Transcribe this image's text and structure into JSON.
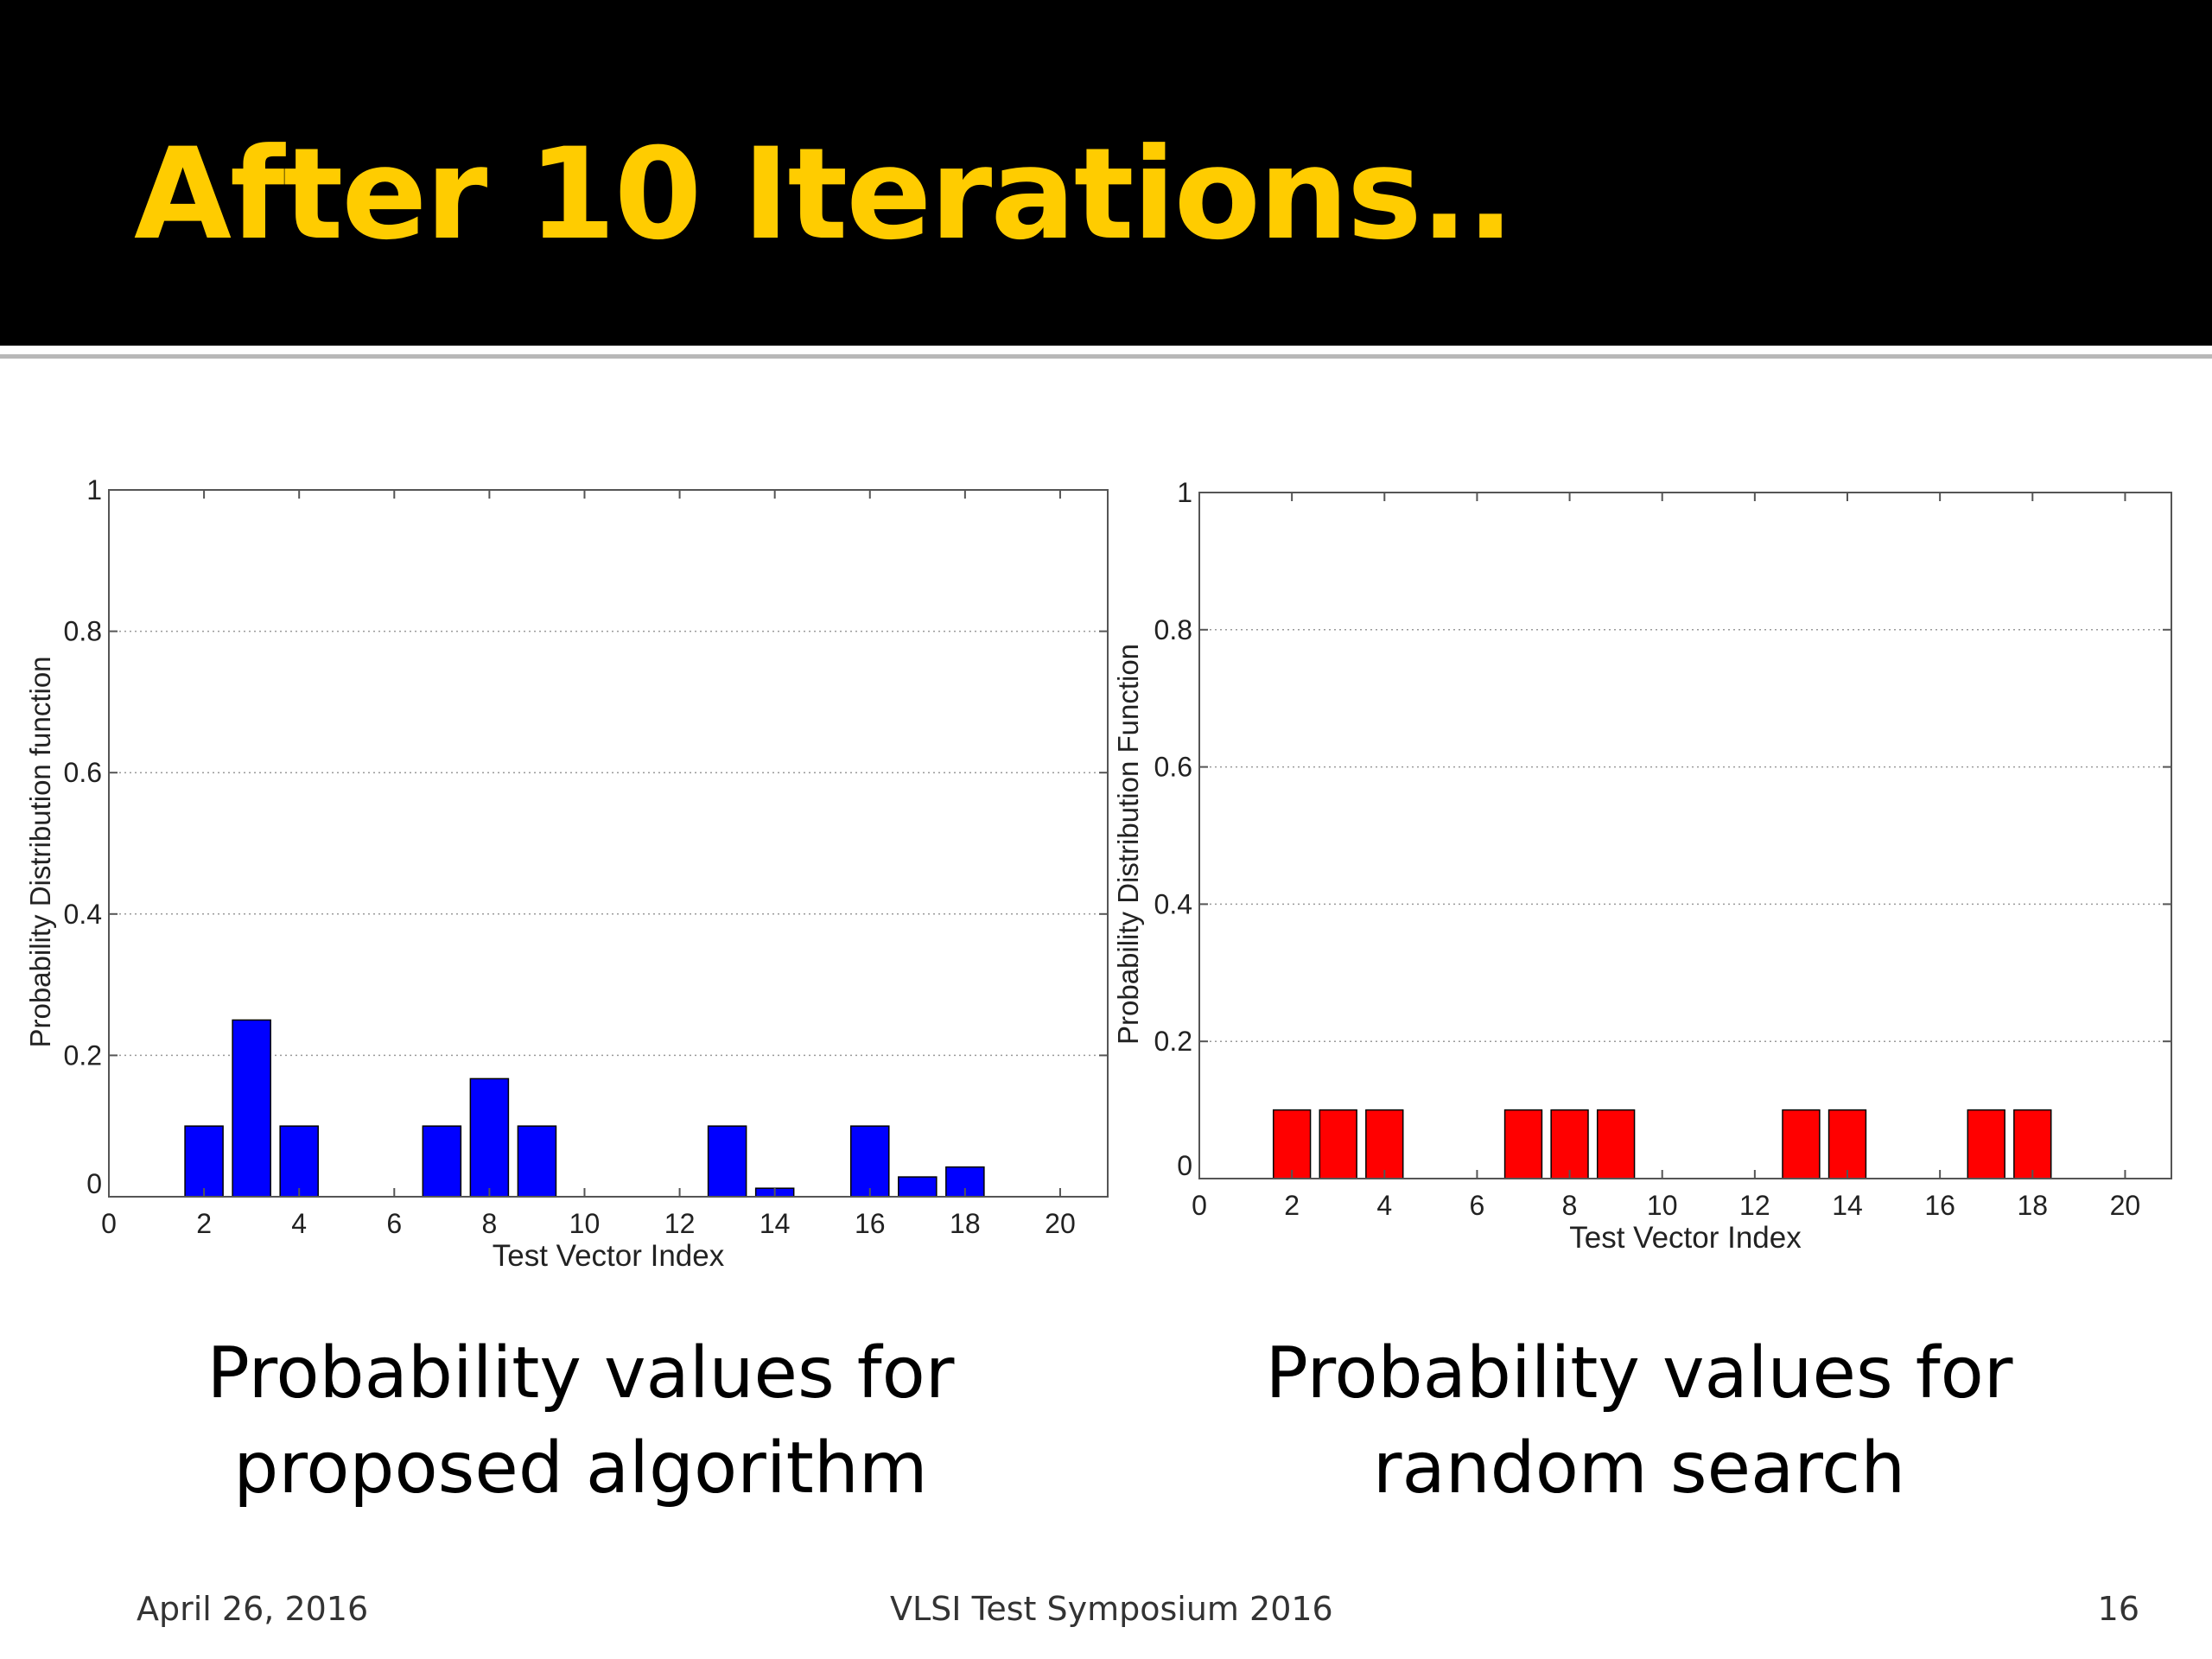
{
  "slide": {
    "title": "After 10 Iterations..",
    "footer": {
      "date": "April 26, 2016",
      "event": "VLSI Test Symposium 2016",
      "page": "16"
    }
  },
  "captions": [
    "Probability values for\nproposed algorithm",
    "Probability values for\nrandom search"
  ],
  "colors": {
    "header_bg": "#000000",
    "title": "#ffcc00",
    "left_bars": "#0000ff",
    "right_bars": "#ff0000"
  },
  "chart_data": [
    {
      "type": "bar",
      "xlabel": "Test Vector Index",
      "ylabel": "Probability Distribution function",
      "xlim": [
        0,
        21
      ],
      "ylim": [
        0,
        1
      ],
      "xticks": [
        0,
        2,
        4,
        6,
        8,
        10,
        12,
        14,
        16,
        18,
        20
      ],
      "yticks": [
        0,
        0.2,
        0.4,
        0.6,
        0.8,
        1
      ],
      "grid": true,
      "bar_color": "#0000ff",
      "x": [
        2,
        3,
        4,
        7,
        8,
        9,
        13,
        14,
        16,
        17,
        18
      ],
      "values": [
        0.1,
        0.25,
        0.1,
        0.1,
        0.167,
        0.1,
        0.1,
        0.012,
        0.1,
        0.028,
        0.042
      ]
    },
    {
      "type": "bar",
      "xlabel": "Test Vector Index",
      "ylabel": "Probability Distribution Function",
      "xlim": [
        0,
        21
      ],
      "ylim": [
        0,
        1
      ],
      "xticks": [
        0,
        2,
        4,
        6,
        8,
        10,
        12,
        14,
        16,
        18,
        20
      ],
      "yticks": [
        0,
        0.2,
        0.4,
        0.6,
        0.8,
        1
      ],
      "grid": true,
      "bar_color": "#ff0000",
      "x": [
        2,
        3,
        4,
        7,
        8,
        9,
        13,
        14,
        17,
        18
      ],
      "values": [
        0.1,
        0.1,
        0.1,
        0.1,
        0.1,
        0.1,
        0.1,
        0.1,
        0.1,
        0.1
      ]
    }
  ]
}
